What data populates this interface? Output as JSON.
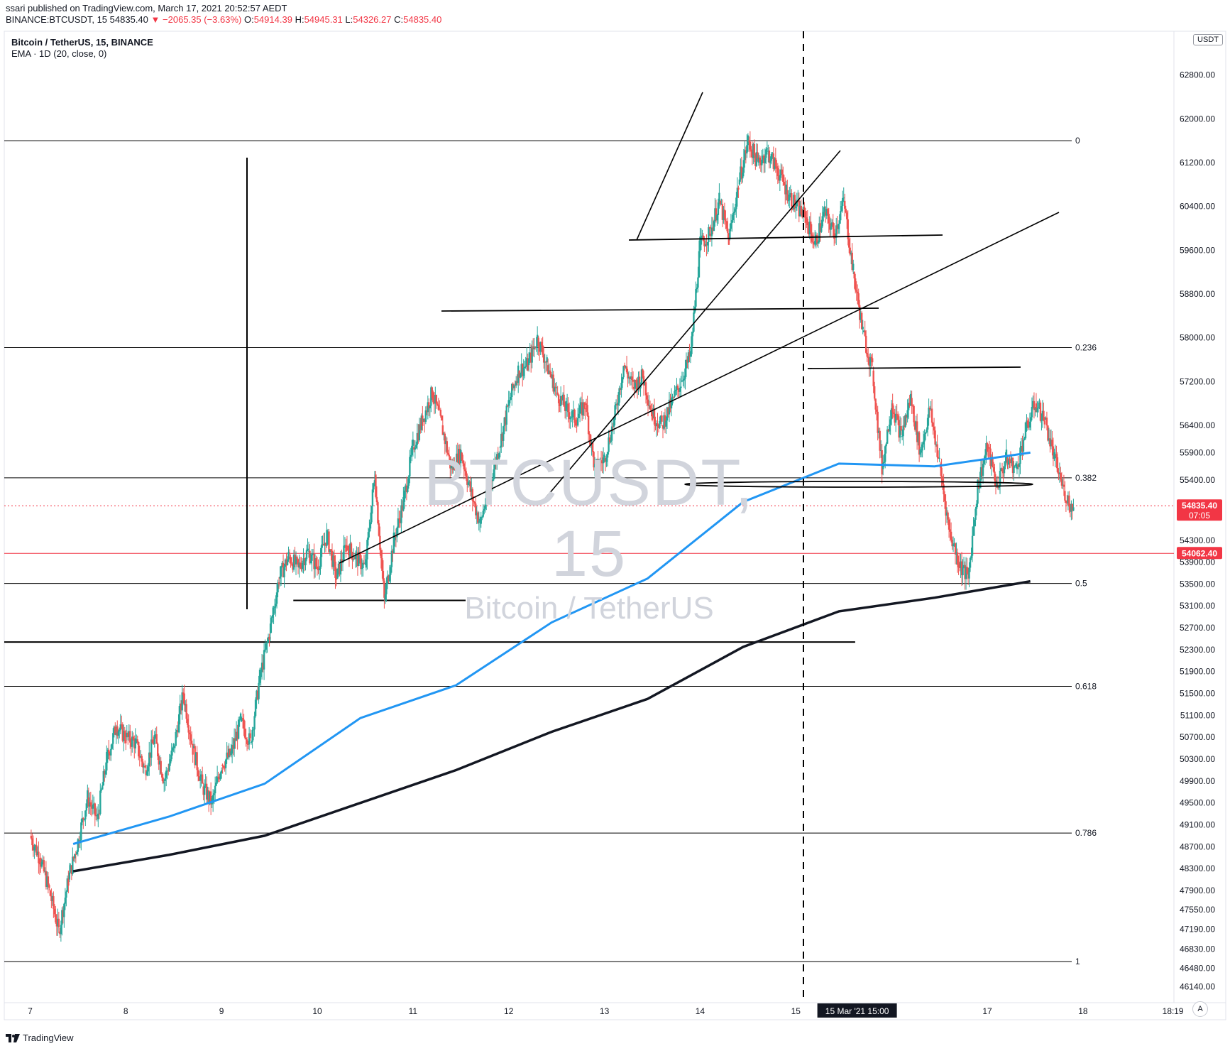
{
  "header": {
    "published": "ssari published on TradingView.com, March 17, 2021 20:52:57 AEDT",
    "symbol": "BINANCE:BTCUSDT, 15",
    "last": "54835.40",
    "change": "−2065.35 (−3.63%)",
    "o_label": "O:",
    "o_value": "54914.39",
    "h_label": "H:",
    "h_value": "54945.31",
    "l_label": "L:",
    "l_value": "54326.27",
    "c_label": "C:",
    "c_value": "54835.40"
  },
  "legend": {
    "title": "Bitcoin / TetherUS, 15, BINANCE",
    "indicator": "EMA · 1D (20, close, 0)"
  },
  "unit_badge": "USDT",
  "watermark": {
    "symbol": "BTCUSDT, 15",
    "name": "Bitcoin / TetherUS"
  },
  "footer": {
    "brand": "TradingView"
  },
  "auto_label": "A",
  "colors": {
    "up": "#26a69a",
    "down": "#ef5350",
    "ema": "#2196f3",
    "lines": "#000000",
    "price_label": "#f23645"
  },
  "chart_data": {
    "type": "candlestick",
    "x_ticks": [
      "7",
      "8",
      "9",
      "10",
      "11",
      "12",
      "13",
      "14",
      "15",
      "15 Mar '21  15:00",
      "17",
      "18",
      "19",
      "18:"
    ],
    "y_ticks": [
      62800,
      62000,
      61200,
      60400,
      59600,
      58800,
      58000,
      57200,
      56400,
      55900,
      55400,
      54300,
      53900,
      53500,
      53100,
      52700,
      52300,
      51900,
      51500,
      51100,
      50700,
      50300,
      49900,
      49500,
      49100,
      48700,
      48300,
      47900,
      47550,
      47190,
      46830,
      46480,
      46140
    ],
    "ylim": [
      45850,
      63600
    ],
    "x_range_days": [
      6.73,
      18.95
    ],
    "price_series": [
      [
        7.0,
        48900
      ],
      [
        7.1,
        48500
      ],
      [
        7.2,
        47900
      ],
      [
        7.3,
        47150
      ],
      [
        7.4,
        48100
      ],
      [
        7.5,
        48800
      ],
      [
        7.6,
        49600
      ],
      [
        7.7,
        49200
      ],
      [
        7.8,
        50300
      ],
      [
        7.9,
        50900
      ],
      [
        8.0,
        50700
      ],
      [
        8.1,
        50600
      ],
      [
        8.2,
        50100
      ],
      [
        8.3,
        50700
      ],
      [
        8.4,
        49900
      ],
      [
        8.5,
        50500
      ],
      [
        8.6,
        51500
      ],
      [
        8.7,
        50500
      ],
      [
        8.8,
        49800
      ],
      [
        8.9,
        49500
      ],
      [
        9.0,
        50200
      ],
      [
        9.1,
        50400
      ],
      [
        9.2,
        51000
      ],
      [
        9.3,
        50600
      ],
      [
        9.4,
        51800
      ],
      [
        9.5,
        52600
      ],
      [
        9.6,
        53600
      ],
      [
        9.7,
        54000
      ],
      [
        9.8,
        53800
      ],
      [
        9.9,
        54100
      ],
      [
        10.0,
        53800
      ],
      [
        10.1,
        54400
      ],
      [
        10.2,
        53600
      ],
      [
        10.3,
        54200
      ],
      [
        10.4,
        54000
      ],
      [
        10.5,
        53800
      ],
      [
        10.6,
        55500
      ],
      [
        10.7,
        53200
      ],
      [
        10.8,
        54300
      ],
      [
        10.9,
        55000
      ],
      [
        11.0,
        56000
      ],
      [
        11.1,
        56500
      ],
      [
        11.2,
        57000
      ],
      [
        11.3,
        56400
      ],
      [
        11.4,
        55600
      ],
      [
        11.5,
        55900
      ],
      [
        11.6,
        55200
      ],
      [
        11.7,
        54600
      ],
      [
        11.8,
        55300
      ],
      [
        11.9,
        56000
      ],
      [
        12.0,
        56800
      ],
      [
        12.1,
        57400
      ],
      [
        12.2,
        57500
      ],
      [
        12.3,
        58000
      ],
      [
        12.4,
        57500
      ],
      [
        12.5,
        57000
      ],
      [
        12.6,
        56700
      ],
      [
        12.7,
        56500
      ],
      [
        12.8,
        56800
      ],
      [
        12.9,
        55600
      ],
      [
        13.0,
        55800
      ],
      [
        13.1,
        56500
      ],
      [
        13.2,
        57500
      ],
      [
        13.3,
        57100
      ],
      [
        13.4,
        57300
      ],
      [
        13.5,
        56600
      ],
      [
        13.6,
        56400
      ],
      [
        13.7,
        56800
      ],
      [
        13.8,
        57200
      ],
      [
        13.9,
        57700
      ],
      [
        14.0,
        59700
      ],
      [
        14.1,
        59900
      ],
      [
        14.2,
        60500
      ],
      [
        14.3,
        59800
      ],
      [
        14.4,
        60800
      ],
      [
        14.5,
        61600
      ],
      [
        14.6,
        61200
      ],
      [
        14.7,
        61400
      ],
      [
        14.8,
        61100
      ],
      [
        14.9,
        60700
      ],
      [
        15.0,
        60400
      ],
      [
        15.1,
        60200
      ],
      [
        15.2,
        59700
      ],
      [
        15.3,
        60300
      ],
      [
        15.4,
        59900
      ],
      [
        15.5,
        60500
      ],
      [
        15.6,
        59200
      ],
      [
        15.7,
        58100
      ],
      [
        15.8,
        57400
      ],
      [
        15.9,
        55600
      ],
      [
        16.0,
        56800
      ],
      [
        16.1,
        56200
      ],
      [
        16.2,
        56900
      ],
      [
        16.3,
        55900
      ],
      [
        16.4,
        56700
      ],
      [
        16.5,
        55700
      ],
      [
        16.6,
        54500
      ],
      [
        16.7,
        53900
      ],
      [
        16.8,
        53600
      ],
      [
        16.9,
        55300
      ],
      [
        17.0,
        56000
      ],
      [
        17.1,
        55300
      ],
      [
        17.2,
        55800
      ],
      [
        17.3,
        55600
      ],
      [
        17.4,
        56300
      ],
      [
        17.5,
        56800
      ],
      [
        17.6,
        56500
      ],
      [
        17.7,
        55800
      ],
      [
        17.8,
        55200
      ],
      [
        17.9,
        54835
      ]
    ],
    "ema_fast": [
      [
        7.45,
        48750
      ],
      [
        8.45,
        49250
      ],
      [
        9.45,
        49850
      ],
      [
        10.45,
        51050
      ],
      [
        11.45,
        51650
      ],
      [
        12.45,
        52800
      ],
      [
        13.45,
        53600
      ],
      [
        14.45,
        55000
      ],
      [
        15.45,
        55700
      ],
      [
        16.45,
        55650
      ],
      [
        17.45,
        55900
      ]
    ],
    "ema_slow": [
      [
        7.45,
        48250
      ],
      [
        8.45,
        48550
      ],
      [
        9.45,
        48900
      ],
      [
        10.45,
        49500
      ],
      [
        11.45,
        50100
      ],
      [
        12.45,
        50800
      ],
      [
        13.45,
        51400
      ],
      [
        14.45,
        52350
      ],
      [
        15.45,
        53000
      ],
      [
        16.45,
        53250
      ],
      [
        17.45,
        53550
      ]
    ],
    "fib_levels": [
      {
        "label": "0",
        "price": 61600
      },
      {
        "label": "0.236",
        "price": 57820
      },
      {
        "label": "0.382",
        "price": 55440
      },
      {
        "label": "0.5",
        "price": 53510
      },
      {
        "label": "0.618",
        "price": 51630
      },
      {
        "label": "0.786",
        "price": 48950
      },
      {
        "label": "1",
        "price": 46600
      }
    ],
    "price_labels": [
      {
        "value": "54835.40",
        "sub": "07:05",
        "price": 54930
      },
      {
        "value": "54062.40",
        "price": 54060
      }
    ],
    "hlines": [
      {
        "x": [
          6.73,
          15.62
        ],
        "price": 52440
      },
      {
        "x": [
          9.75,
          11.55
        ],
        "price": 53200
      }
    ]
  }
}
